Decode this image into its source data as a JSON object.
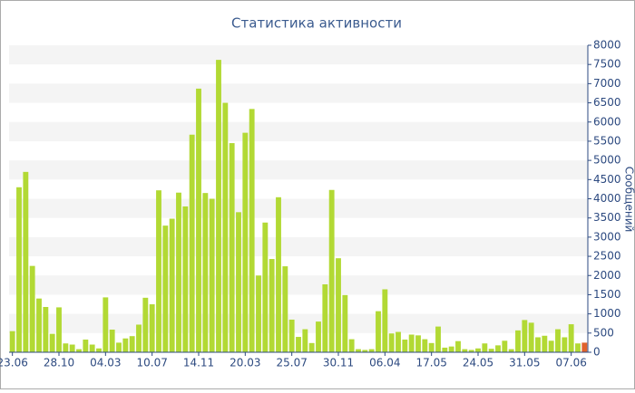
{
  "chart_data": {
    "type": "bar",
    "title": "Статистика активности",
    "y_label": "Сообщений",
    "categories": [
      "23.06",
      null,
      null,
      null,
      null,
      null,
      null,
      "28.10",
      null,
      null,
      null,
      null,
      null,
      null,
      "04.03",
      null,
      null,
      null,
      null,
      null,
      null,
      "10.07",
      null,
      null,
      null,
      null,
      null,
      null,
      "14.11",
      null,
      null,
      null,
      null,
      null,
      null,
      "20.03",
      null,
      null,
      null,
      null,
      null,
      null,
      "25.07",
      null,
      null,
      null,
      null,
      null,
      null,
      "30.11",
      null,
      null,
      null,
      null,
      null,
      null,
      "06.04",
      null,
      null,
      null,
      null,
      null,
      null,
      "17.05",
      null,
      null,
      null,
      null,
      null,
      null,
      "24.05",
      null,
      null,
      null,
      null,
      null,
      null,
      "31.05",
      null,
      null,
      null,
      null,
      null,
      null,
      "07.06",
      null,
      null
    ],
    "values": [
      550,
      4300,
      4700,
      2250,
      1400,
      1180,
      480,
      1170,
      230,
      200,
      80,
      330,
      200,
      100,
      1430,
      590,
      250,
      360,
      420,
      720,
      1420,
      1250,
      4220,
      3300,
      3480,
      4160,
      3800,
      5670,
      6870,
      4150,
      4000,
      7620,
      6500,
      5450,
      3650,
      5720,
      6340,
      2000,
      3380,
      2430,
      4040,
      2240,
      850,
      400,
      600,
      240,
      800,
      1770,
      4230,
      2450,
      1490,
      340,
      80,
      60,
      80,
      1070,
      1640,
      490,
      530,
      330,
      460,
      440,
      340,
      240,
      670,
      120,
      150,
      290,
      80,
      60,
      100,
      230,
      90,
      180,
      300,
      80,
      570,
      840,
      770,
      390,
      430,
      300,
      600,
      390,
      730,
      230,
      250
    ],
    "color": "#b2d934",
    "colors": [
      "#b2d934",
      "#b2d934",
      "#b2d934",
      "#b2d934",
      "#b2d934",
      "#b2d934",
      "#b2d934",
      "#b2d934",
      "#b2d934",
      "#b2d934",
      "#b2d934",
      "#b2d934",
      "#b2d934",
      "#b2d934",
      "#b2d934",
      "#b2d934",
      "#b2d934",
      "#b2d934",
      "#b2d934",
      "#b2d934",
      "#b2d934",
      "#b2d934",
      "#b2d934",
      "#b2d934",
      "#b2d934",
      "#b2d934",
      "#b2d934",
      "#b2d934",
      "#b2d934",
      "#b2d934",
      "#b2d934",
      "#b2d934",
      "#b2d934",
      "#b2d934",
      "#b2d934",
      "#b2d934",
      "#b2d934",
      "#b2d934",
      "#b2d934",
      "#b2d934",
      "#b2d934",
      "#b2d934",
      "#b2d934",
      "#b2d934",
      "#b2d934",
      "#b2d934",
      "#b2d934",
      "#b2d934",
      "#b2d934",
      "#b2d934",
      "#b2d934",
      "#b2d934",
      "#b2d934",
      "#b2d934",
      "#b2d934",
      "#b2d934",
      "#b2d934",
      "#b2d934",
      "#b2d934",
      "#b2d934",
      "#b2d934",
      "#b2d934",
      "#b2d934",
      "#b2d934",
      "#b2d934",
      "#b2d934",
      "#b2d934",
      "#b2d934",
      "#b2d934",
      "#b2d934",
      "#b2d934",
      "#b2d934",
      "#b2d934",
      "#b2d934",
      "#b2d934",
      "#b2d934",
      "#b2d934",
      "#b2d934",
      "#b2d934",
      "#b2d934",
      "#b2d934",
      "#b2d934",
      "#b2d934",
      "#b2d934",
      "#b2d934",
      "#b2d934",
      "#e0622c"
    ],
    "ylim": [
      0,
      8000
    ],
    "yticks": [
      0,
      500,
      1000,
      1500,
      2000,
      2500,
      3000,
      3500,
      4000,
      4500,
      5000,
      5500,
      6000,
      6500,
      7000,
      7500,
      8000
    ],
    "grid": true
  }
}
